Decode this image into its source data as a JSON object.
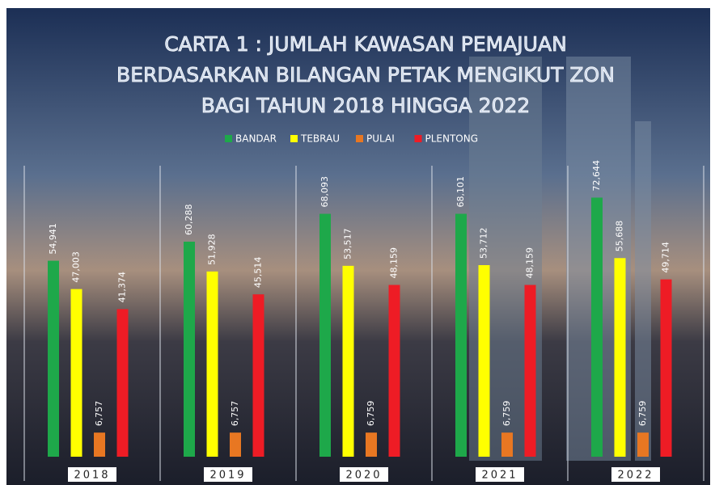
{
  "chart_data": {
    "type": "bar",
    "title": [
      "CARTA 1 : JUMLAH KAWASAN PEMAJUAN",
      "BERDASARKAN BILANGAN PETAK MENGIKUT ZON",
      "BAGI TAHUN 2018 HINGGA 2022"
    ],
    "categories": [
      "2018",
      "2019",
      "2020",
      "2021",
      "2022"
    ],
    "series": [
      {
        "name": "BANDAR",
        "color": "#1ea84a",
        "values": [
          54941,
          60288,
          68093,
          68101,
          72644
        ],
        "value_labels": [
          "54,941",
          "60,288",
          "68,093",
          "68,101",
          "72,644"
        ]
      },
      {
        "name": "TEBRAU",
        "color": "#ffff00",
        "values": [
          47003,
          51928,
          53517,
          53712,
          55688
        ],
        "value_labels": [
          "47,003",
          "51,928",
          "53,517",
          "53,712",
          "55,688"
        ]
      },
      {
        "name": "PULAI",
        "color": "#e87722",
        "values": [
          6757,
          6757,
          6759,
          6759,
          6759
        ],
        "value_labels": [
          "6,757",
          "6,757",
          "6,759",
          "6,759",
          "6,759"
        ]
      },
      {
        "name": "PLENTONG",
        "color": "#ee1c25",
        "values": [
          41374,
          45514,
          48159,
          48159,
          49714
        ],
        "value_labels": [
          "41,374",
          "45,514",
          "48,159",
          "48,159",
          "49,714"
        ]
      }
    ],
    "ylim": [
      0,
      80000
    ],
    "legend": "top"
  }
}
